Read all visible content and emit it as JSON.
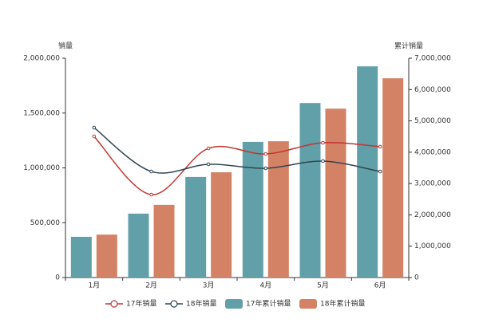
{
  "chart_data": {
    "type": "bar-line",
    "y_label": "销量",
    "y2_label": "累计销量",
    "categories": [
      "1月",
      "2月",
      "3月",
      "4月",
      "5月",
      "6月"
    ],
    "series": [
      {
        "name": "17年销量",
        "type": "line",
        "color": "#c23531",
        "values": [
          1287000,
          756000,
          1178000,
          1127000,
          1229000,
          1193000
        ]
      },
      {
        "name": "18年销量",
        "type": "line",
        "color": "#2f4554",
        "values": [
          1367000,
          967000,
          1033000,
          996000,
          1062000,
          967000
        ]
      },
      {
        "name": "17年累计销量",
        "type": "bar",
        "axis": "y2",
        "color": "#61a0a8",
        "values": [
          1300000,
          2040000,
          3210000,
          4330000,
          5570000,
          6740000
        ]
      },
      {
        "name": "18年累计销量",
        "type": "bar",
        "axis": "y2",
        "color": "#d48265",
        "values": [
          1370000,
          2320000,
          3360000,
          4350000,
          5390000,
          6360000
        ]
      }
    ],
    "ylim": [
      0,
      2000000
    ],
    "yticks": [
      0,
      {
        "value": 500000,
        "label": "500,000"
      },
      {
        "value": 1000000,
        "label": "1,000,000"
      },
      {
        "value": 1500000,
        "label": "1,500,000"
      },
      {
        "value": 2000000,
        "label": "2,000,000"
      }
    ],
    "y2lim": [
      0,
      7000000
    ],
    "y2ticks": [
      0,
      {
        "value": 1000000,
        "label": "1,000,000"
      },
      {
        "value": 2000000,
        "label": "2,000,000"
      },
      {
        "value": 3000000,
        "label": "3,000,000"
      },
      {
        "value": 4000000,
        "label": "4,000,000"
      },
      {
        "value": 5000000,
        "label": "5,000,000"
      },
      {
        "value": 6000000,
        "label": "6,000,000"
      },
      {
        "value": 7000000,
        "label": "7,000,000"
      }
    ],
    "legend": "bottom"
  }
}
